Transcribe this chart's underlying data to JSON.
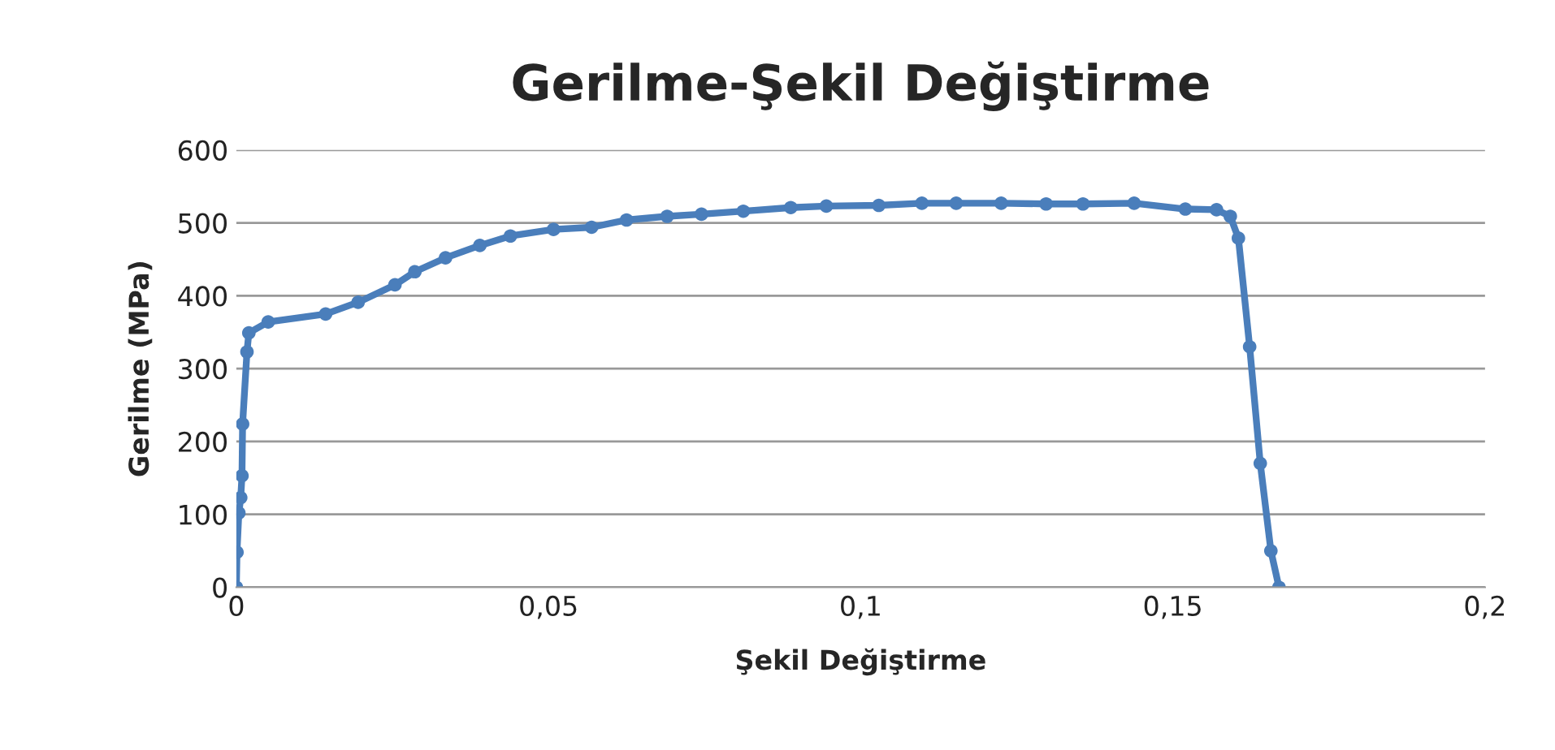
{
  "chart_data": {
    "type": "line",
    "title": "Gerilme-Şekil Değiştirme",
    "xlabel": "Şekil Değiştirme",
    "ylabel": "Gerilme (MPa)",
    "series": [
      {
        "color": "#4a7ebb",
        "x": [
          0,
          0.0001,
          0.0004,
          0.0007,
          0.0009,
          0.001,
          0.0017,
          0.002,
          0.0051,
          0.0143,
          0.0195,
          0.0254,
          0.0286,
          0.0335,
          0.039,
          0.0439,
          0.0508,
          0.0569,
          0.0625,
          0.069,
          0.0745,
          0.0812,
          0.0888,
          0.0945,
          0.1029,
          0.1098,
          0.1153,
          0.1225,
          0.1297,
          0.1356,
          0.1438,
          0.152,
          0.157,
          0.1592,
          0.1605,
          0.1623,
          0.164,
          0.1657,
          0.167
        ],
        "values": [
          0,
          48,
          102,
          123,
          153,
          224,
          323,
          349,
          364,
          375,
          391,
          415,
          433,
          452,
          469,
          482,
          491,
          494,
          504,
          509,
          512,
          516,
          521,
          523,
          524,
          527,
          527,
          527,
          526,
          526,
          527,
          519,
          518,
          509,
          479,
          330,
          170,
          50,
          0
        ]
      }
    ],
    "xlim": [
      0,
      0.2
    ],
    "xticks": [
      0,
      {
        "value": 0.05,
        "label": "0,05"
      },
      {
        "value": 0.1,
        "label": "0,1"
      },
      {
        "value": 0.15,
        "label": "0,15"
      },
      {
        "value": 0.2,
        "label": "0,2"
      }
    ],
    "ylim": [
      0,
      600
    ],
    "yticks": [
      0,
      100,
      200,
      300,
      400,
      500,
      600
    ],
    "grid": "y",
    "marker": "circle",
    "line_style": "solid",
    "legend": false
  }
}
